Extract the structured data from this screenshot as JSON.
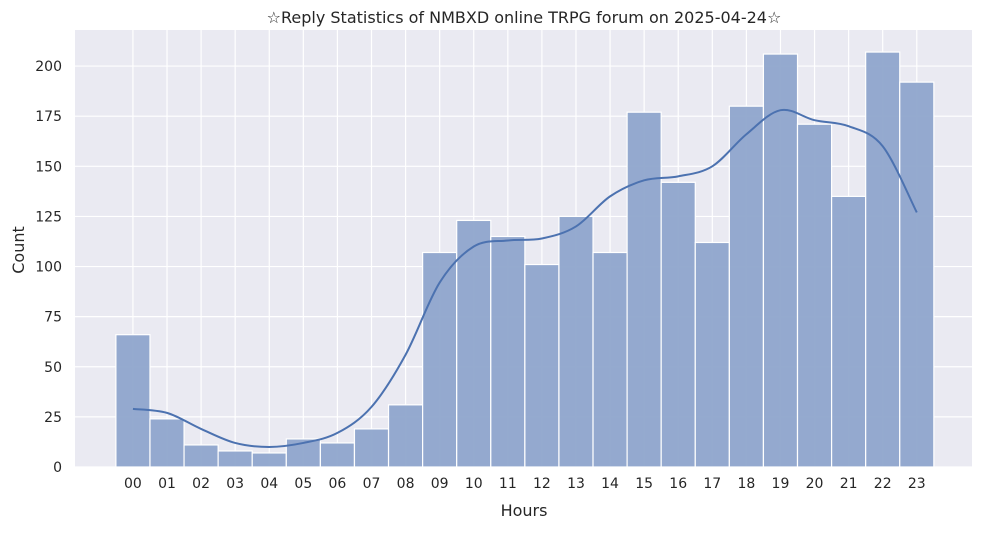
{
  "chart_data": {
    "type": "bar",
    "title": "☆Reply Statistics of NMBXD online TRPG forum on 2025-04-24☆",
    "xlabel": "Hours",
    "ylabel": "Count",
    "categories": [
      "00",
      "01",
      "02",
      "03",
      "04",
      "05",
      "06",
      "07",
      "08",
      "09",
      "10",
      "11",
      "12",
      "13",
      "14",
      "15",
      "16",
      "17",
      "18",
      "19",
      "20",
      "21",
      "22",
      "23"
    ],
    "values": [
      66,
      24,
      11,
      8,
      7,
      14,
      12,
      19,
      31,
      107,
      123,
      115,
      101,
      125,
      107,
      177,
      142,
      112,
      180,
      206,
      171,
      135,
      207,
      192
    ],
    "kde": [
      29,
      27,
      19,
      12,
      10,
      12,
      17,
      30,
      56,
      92,
      110,
      113,
      114,
      120,
      135,
      143,
      145,
      150,
      166,
      178,
      173,
      170,
      160,
      127
    ],
    "ylim": [
      0,
      218
    ],
    "yticks": [
      0,
      25,
      50,
      75,
      100,
      125,
      150,
      175,
      200
    ],
    "grid": true,
    "colors": {
      "bar": "#8fa5cc",
      "line": "#4c72b0",
      "background": "#eaeaf2"
    }
  }
}
